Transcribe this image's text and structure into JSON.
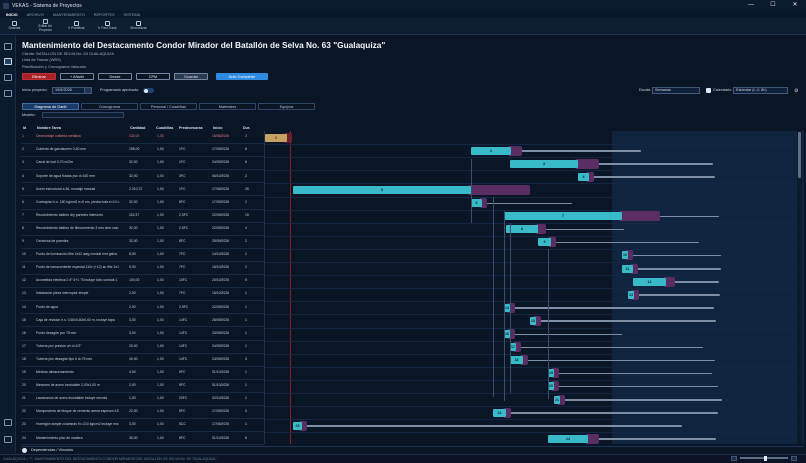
{
  "window": {
    "title": "VEKAS - Sistema de Proyectos",
    "controls": [
      "—",
      "☐",
      "✕"
    ]
  },
  "menu": {
    "items": [
      "INICIO",
      "ARCHIVO",
      "MANTENIMIENTO",
      "REPORTES",
      "SISTEMA"
    ]
  },
  "ribbon": {
    "buttons": [
      {
        "label": "Guardar",
        "icon": "save-icon"
      },
      {
        "label": "Editar tel. Proyecto",
        "icon": "edit-icon"
      },
      {
        "label": "Ir Planificar",
        "icon": "plan-icon"
      },
      {
        "label": "Ir Fast Track",
        "icon": "fast-track-icon"
      },
      {
        "label": "Sincronizar",
        "icon": "sync-icon"
      }
    ]
  },
  "header": {
    "title": "Mantenimiento del Destacamento Condor Mirador del Batallón de Selva No. 63 \"Gualaquiza\"",
    "client": "Cliente: BATALLON DE SELVA No. 63 GUALAQUIZA",
    "wbs": "Lista de Tareas (WBS)",
    "section": "Planificación y Cronograma Valorado"
  },
  "actions": {
    "delete": "Eliminar",
    "add": "+ Añadir",
    "from": "Desde",
    "cpm": "CPM",
    "save": "Guardar",
    "autocomplete": "Auto Completar"
  },
  "options": {
    "start_label": "Inicio proyecto:",
    "start_value": "15/6/2026",
    "approved_label": "Programado aprobado:",
    "scale_label": "Escala",
    "scale_value": "Semanas",
    "calendar_label": "Calendario",
    "calendar_value": "Estándar (L-V, 8h)"
  },
  "tabs": [
    "Diagrama de Gantt",
    "Cronograma",
    "Personal / Cuadrillas",
    "Materiales",
    "Equipos"
  ],
  "model_label": "Modelo:",
  "columns": [
    "Id",
    "Nombre Tarea",
    "Cantidad",
    "Cuadrillas",
    "Predecesoras",
    "Inicio",
    "Dur."
  ],
  "tasks": [
    {
      "id": "1",
      "name": "Desmontaje cubierta metálica",
      "qty": "142,00",
      "crews": "1,00",
      "pred": "",
      "start": "15/06/2026",
      "dur": "3",
      "critical": true
    },
    {
      "id": "2",
      "name": "Cubierta de galvalumen 0,40 mm",
      "qty": "198,00",
      "crews": "1,00",
      "pred": "1FC",
      "start": "17/09/2026",
      "dur": "6",
      "critical": false
    },
    {
      "id": "3",
      "name": "Canal de tool 0,70 m/2m",
      "qty": "32,00",
      "crews": "1,00",
      "pred": "1FC",
      "start": "24/09/2026",
      "dur": "6",
      "critical": false
    },
    {
      "id": "4",
      "name": "Soporte de agua fluvias pvc d=160 mm",
      "qty": "32,00",
      "crews": "1,00",
      "pred": "3FC",
      "start": "06/10/2026",
      "dur": "2",
      "critical": false
    },
    {
      "id": "5",
      "name": "Acero estructural a 36, montaje manual",
      "qty": "2.210,72",
      "crews": "1,00",
      "pred": "1FC",
      "start": "17/06/2026",
      "dur": "25",
      "critical": false
    },
    {
      "id": "6",
      "name": "Contrapiso h.s. 180 kg/cm2 e=6 cm, piedra bola e=10 c",
      "qty": "32,00",
      "crews": "1,00",
      "pred": "5FC",
      "start": "17/09/2026",
      "dur": "2",
      "critical": false
    },
    {
      "id": "7",
      "name": "Recubrimiento tablero dry paredes interiores",
      "qty": "115,37",
      "crews": "1,00",
      "pred": "2,5FC",
      "start": "22/09/2026",
      "dur": "15",
      "critical": false
    },
    {
      "id": "8",
      "name": "Recubrimiento tablero de fibrocemento 3 mm dmx calo",
      "qty": "32,00",
      "crews": "1,00",
      "pred": "2,5FC",
      "start": "22/09/2026",
      "dur": "4",
      "critical": false
    },
    {
      "id": "9",
      "name": "Cerámica de paredes",
      "qty": "32,00",
      "crews": "1,00",
      "pred": "8FC",
      "start": "29/09/2026",
      "dur": "2",
      "critical": false
    },
    {
      "id": "10",
      "name": "Punto de iluminación ifhe 2x12 awg conduit emt galva",
      "qty": "8,00",
      "crews": "1,00",
      "pred": "7FC",
      "start": "14/10/2026",
      "dur": "1",
      "critical": false
    },
    {
      "id": "11",
      "name": "Punto de tomacorriente especial 110v (+12) ac ifhe 2x1",
      "qty": "5,00",
      "crews": "1,00",
      "pred": "7FC",
      "start": "16/10/2026",
      "dur": "2",
      "critical": false
    },
    {
      "id": "12",
      "name": "Acometida eléctrica 2 #° 6+1 °8 incluye tubo conduit 1",
      "qty": "100,00",
      "crews": "1,00",
      "pred": "10FC",
      "start": "20/10/2026",
      "dur": "5",
      "critical": false
    },
    {
      "id": "13",
      "name": "Instalación pieza interruptor simple",
      "qty": "2,00",
      "crews": "1,00",
      "pred": "7FC",
      "start": "15/10/2026",
      "dur": "1",
      "critical": false
    },
    {
      "id": "14",
      "name": "Punto de agua",
      "qty": "2,00",
      "crews": "1,00",
      "pred": "2,5FC",
      "start": "22/09/2026",
      "dur": "1",
      "critical": false
    },
    {
      "id": "15",
      "name": "Caja de revisión h.s. 0,60x0,60x0,60 m, incluye tapa",
      "qty": "3,00",
      "crews": "1,00",
      "pred": "14FC",
      "start": "28/09/2026",
      "dur": "1",
      "critical": false
    },
    {
      "id": "16",
      "name": "Punto desagüe pvc 75 mm",
      "qty": "3,00",
      "crews": "1,00",
      "pred": "14FC",
      "start": "23/09/2026",
      "dur": "1",
      "critical": false
    },
    {
      "id": "17",
      "name": "Tubería pvc presión u/r d=1/2\"",
      "qty": "20,00",
      "crews": "1,00",
      "pred": "14FC",
      "start": "24/09/2026",
      "dur": "1",
      "critical": false
    },
    {
      "id": "18",
      "name": "Tubería pvc desagüe tipo b d=75 mm",
      "qty": "40,00",
      "crews": "1,00",
      "pred": "14FC",
      "start": "24/09/2026",
      "dur": "3",
      "critical": false
    },
    {
      "id": "19",
      "name": "Mechas almacenamiento",
      "qty": "4,00",
      "crews": "1,00",
      "pred": "9FC",
      "start": "01/10/2026",
      "dur": "1",
      "critical": false
    },
    {
      "id": "20",
      "name": "Mesones de acero inoxidable 2,00x1,00 m",
      "qty": "2,00",
      "crews": "1,00",
      "pred": "9FC",
      "start": "01/10/2026",
      "dur": "1",
      "critical": false
    },
    {
      "id": "21",
      "name": "Lavamanos de acero inoxidable incluye mezcla",
      "qty": "1,00",
      "crews": "1,00",
      "pred": "20FC",
      "start": "02/10/2026",
      "dur": "1",
      "critical": false
    },
    {
      "id": "22",
      "name": "Mampostería de bloque de cemento arena espesor=15",
      "qty": "22,00",
      "crews": "1,00",
      "pred": "5FC",
      "start": "17/09/2026",
      "dur": "3",
      "critical": false
    },
    {
      "id": "23",
      "name": "Hormigón simple columnas f'c=210 kg/cm2 incluye enc",
      "qty": "3,00",
      "crews": "1,00",
      "pred": "5CC",
      "start": "17/06/2026",
      "dur": "1",
      "critical": false
    },
    {
      "id": "24",
      "name": "Mantenimiento piso de madera",
      "qty": "30,00",
      "crews": "1,00",
      "pred": "5FC",
      "start": "01/10/2026",
      "dur": "8",
      "critical": false
    }
  ],
  "footer": {
    "dependencies": "Dependencias / Vínculos",
    "status": "GUALAQUIZA > 🏷 MANTENIMIENTO DEL DESTACAMENTO CONDOR MIRADOR DEL BATALLÓN DE SELVA No. 63 \"GUALAQUIZA\""
  }
}
